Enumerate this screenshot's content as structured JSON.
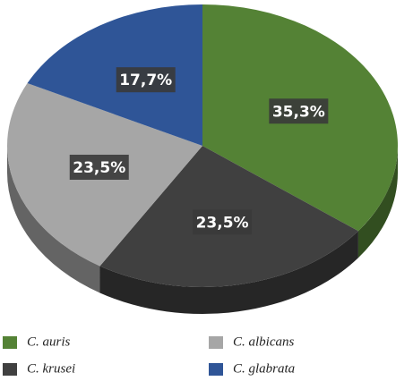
{
  "chart_data": {
    "type": "pie",
    "categories": [
      "C. auris",
      "C. krusei",
      "C. albicans",
      "C. glabrata"
    ],
    "values": [
      35.3,
      23.5,
      23.5,
      17.7
    ],
    "value_labels": [
      "35,3%",
      "23,5%",
      "23,5%",
      "17,7%"
    ],
    "colors": [
      "#548235",
      "#404040",
      "#a6a6a6",
      "#2f5597"
    ]
  }
}
